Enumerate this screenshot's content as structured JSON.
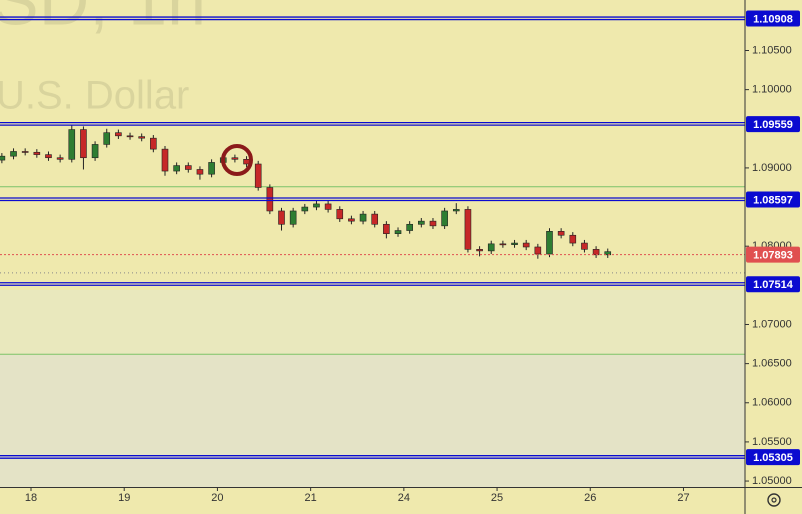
{
  "chart_data": {
    "type": "candlestick",
    "watermark_title": "SD, 1h",
    "watermark_subtitle": "U.S. Dollar",
    "up_color": "#2e7d32",
    "down_color": "#c62828",
    "level_color": "#0b0bd0",
    "price_color": "#e05050",
    "x": [
      -0.3125,
      -0.1875,
      -0.0625,
      0.0625,
      0.1875,
      0.3125,
      0.4375,
      0.5625,
      0.6875,
      0.8125,
      0.9375,
      1.0625,
      1.1875,
      1.3125,
      1.4375,
      1.5625,
      1.6875,
      1.8125,
      1.9375,
      2.0625,
      2.1875,
      2.3125,
      2.4375,
      2.5625,
      2.6875,
      2.8125,
      2.9375,
      3.0625,
      3.1875,
      3.3125,
      3.4375,
      3.5625,
      3.6875,
      3.8125,
      3.9375,
      4.0625,
      4.1875,
      4.3125,
      4.4375,
      4.5625,
      4.6875,
      4.8125,
      4.9375,
      5.0625,
      5.1875,
      5.3125,
      5.4375,
      5.5625,
      5.6875,
      5.8125,
      5.9375,
      6.0625,
      6.1875
    ],
    "open": [
      1.091,
      1.0915,
      1.0921,
      1.092,
      1.0917,
      1.0913,
      1.0911,
      1.0949,
      1.0913,
      1.093,
      1.0945,
      1.0941,
      1.094,
      1.0938,
      1.0924,
      1.0896,
      1.0903,
      1.0898,
      1.0892,
      1.0907,
      1.0913,
      1.0911,
      1.0905,
      1.0875,
      1.0845,
      1.0828,
      1.0845,
      1.085,
      1.0854,
      1.0847,
      1.0835,
      1.0832,
      1.0841,
      1.0828,
      1.0816,
      1.082,
      1.0828,
      1.0832,
      1.0826,
      1.0845,
      1.0847,
      1.0796,
      1.0794,
      1.0803,
      1.0802,
      1.0804,
      1.0799,
      1.079,
      1.0819,
      1.0814,
      1.0804,
      1.0796,
      1.0789
    ],
    "high": [
      1.0919,
      1.0925,
      1.0925,
      1.0924,
      1.0921,
      1.0917,
      1.0955,
      1.0953,
      1.0934,
      1.095,
      1.0949,
      1.0945,
      1.0944,
      1.0942,
      1.0928,
      1.0907,
      1.0907,
      1.0902,
      1.0911,
      1.0917,
      1.0917,
      1.0915,
      1.0909,
      1.0879,
      1.0849,
      1.0849,
      1.0854,
      1.0858,
      1.0858,
      1.0851,
      1.0839,
      1.0845,
      1.0845,
      1.0832,
      1.0824,
      1.0832,
      1.0836,
      1.0836,
      1.0849,
      1.0855,
      1.0851,
      1.08,
      1.0807,
      1.0807,
      1.0808,
      1.0808,
      1.0803,
      1.0823,
      1.0823,
      1.0818,
      1.0808,
      1.08,
      1.0797
    ],
    "low": [
      1.0906,
      1.0911,
      1.0916,
      1.0913,
      1.0909,
      1.0907,
      1.0907,
      1.0898,
      1.0909,
      1.0926,
      1.0937,
      1.0936,
      1.0934,
      1.092,
      1.089,
      1.0892,
      1.0894,
      1.0885,
      1.0888,
      1.0903,
      1.0907,
      1.0901,
      1.0871,
      1.0841,
      1.082,
      1.0824,
      1.0841,
      1.0846,
      1.0843,
      1.0831,
      1.0828,
      1.0828,
      1.0824,
      1.081,
      1.0812,
      1.0816,
      1.0824,
      1.0822,
      1.0822,
      1.0841,
      1.0792,
      1.0787,
      1.079,
      1.0798,
      1.0798,
      1.0795,
      1.0784,
      1.0786,
      1.081,
      1.08,
      1.0792,
      1.0785,
      1.0785
    ],
    "close": [
      1.0915,
      1.0921,
      1.092,
      1.0917,
      1.0913,
      1.0911,
      1.0949,
      1.0913,
      1.093,
      1.0945,
      1.0941,
      1.094,
      1.0938,
      1.0924,
      1.0896,
      1.0903,
      1.0898,
      1.0892,
      1.0907,
      1.0913,
      1.0911,
      1.0905,
      1.0875,
      1.0845,
      1.0828,
      1.0845,
      1.085,
      1.0854,
      1.0847,
      1.0835,
      1.0832,
      1.0841,
      1.0828,
      1.0816,
      1.082,
      1.0828,
      1.0832,
      1.0826,
      1.0845,
      1.0847,
      1.0796,
      1.0794,
      1.0803,
      1.0802,
      1.0804,
      1.0799,
      1.079,
      1.0819,
      1.0814,
      1.0804,
      1.0796,
      1.0789,
      1.0793
    ],
    "levels": [
      1.10908,
      1.09559,
      1.08597,
      1.07514,
      1.05305
    ],
    "green_levels": [
      1.0876,
      1.0662
    ],
    "dotted_level": 1.0766,
    "current_price": 1.07893,
    "xlim": [
      -0.3326,
      7.66
    ],
    "xticks": [
      {
        "value": 0,
        "label": "18"
      },
      {
        "value": 1,
        "label": "19"
      },
      {
        "value": 2,
        "label": "20"
      },
      {
        "value": 3,
        "label": "21"
      },
      {
        "value": 4,
        "label": "24"
      },
      {
        "value": 5,
        "label": "25"
      },
      {
        "value": 6,
        "label": "26"
      },
      {
        "value": 7,
        "label": "27"
      }
    ],
    "ylim": [
      1.04924,
      1.11145
    ],
    "yticks": [
      {
        "value": 1.05,
        "label": "1.05000"
      },
      {
        "value": 1.055,
        "label": "1.05500"
      },
      {
        "value": 1.06,
        "label": "1.06000"
      },
      {
        "value": 1.065,
        "label": "1.06500"
      },
      {
        "value": 1.07,
        "label": "1.07000"
      },
      {
        "value": 1.08,
        "label": "1.08000"
      },
      {
        "value": 1.09,
        "label": "1.09000"
      },
      {
        "value": 1.1,
        "label": "1.10000"
      },
      {
        "value": 1.105,
        "label": "1.10500"
      }
    ]
  }
}
